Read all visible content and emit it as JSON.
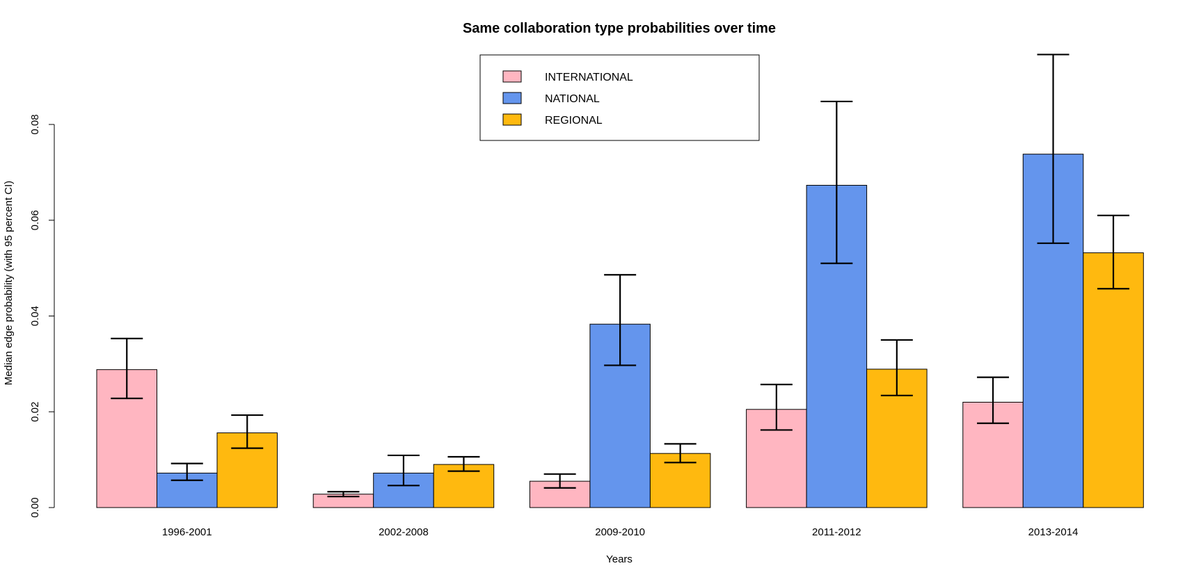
{
  "chart_data": {
    "type": "bar",
    "title": "Same collaboration type probabilities over time",
    "xlabel": "Years",
    "ylabel": "Median edge probability (with 95 percent CI)",
    "categories": [
      "1996-2001",
      "2002-2008",
      "2009-2010",
      "2011-2012",
      "2013-2014"
    ],
    "ylim": [
      0,
      0.08
    ],
    "yticks": [
      "0.00",
      "0.02",
      "0.04",
      "0.06",
      "0.08"
    ],
    "grid": false,
    "legend_position": "top-center",
    "series": [
      {
        "name": "INTERNATIONAL",
        "color": "#FFB6C1",
        "values": [
          0.0288,
          0.0028,
          0.0055,
          0.0205,
          0.022
        ],
        "ci_low": [
          0.0228,
          0.0023,
          0.0041,
          0.0162,
          0.0176
        ],
        "ci_high": [
          0.0353,
          0.0033,
          0.007,
          0.0257,
          0.0272
        ]
      },
      {
        "name": "NATIONAL",
        "color": "#6495ED",
        "values": [
          0.0072,
          0.0072,
          0.0383,
          0.0673,
          0.0738
        ],
        "ci_low": [
          0.0057,
          0.0046,
          0.0297,
          0.051,
          0.0552
        ],
        "ci_high": [
          0.0092,
          0.0109,
          0.0486,
          0.0848,
          0.0946
        ]
      },
      {
        "name": "REGIONAL",
        "color": "#FFB90F",
        "values": [
          0.0156,
          0.009,
          0.0113,
          0.0289,
          0.0532
        ],
        "ci_low": [
          0.0124,
          0.0076,
          0.0094,
          0.0234,
          0.0457
        ],
        "ci_high": [
          0.0193,
          0.0106,
          0.0133,
          0.035,
          0.061
        ]
      }
    ]
  }
}
